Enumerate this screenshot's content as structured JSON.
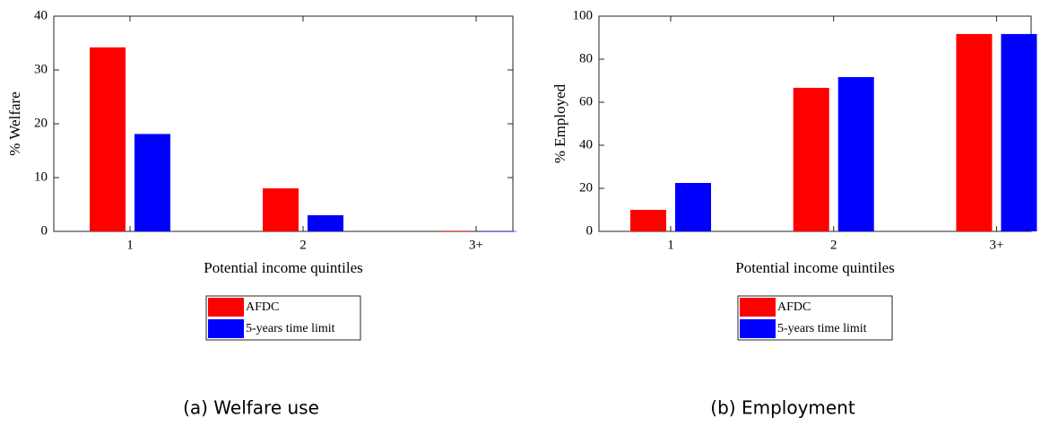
{
  "chart_data": [
    {
      "type": "bar",
      "caption": "(a) Welfare use",
      "xlabel": "Potential income quintiles",
      "ylabel": "% Welfare",
      "categories": [
        "1",
        "2",
        "3+"
      ],
      "series": [
        {
          "name": "AFDC",
          "color": "#ff0000",
          "values": [
            34.2,
            8,
            0.1
          ]
        },
        {
          "name": "5-years time limit",
          "color": "#0000ff",
          "values": [
            18.1,
            3,
            0.05
          ]
        }
      ],
      "ylim": [
        0,
        40
      ],
      "yticks": [
        0,
        10,
        20,
        30,
        40
      ],
      "legend": "bottom"
    },
    {
      "type": "bar",
      "caption": "(b) Employment",
      "xlabel": "Potential income quintiles",
      "ylabel": "% Employed",
      "categories": [
        "1",
        "2",
        "3+"
      ],
      "series": [
        {
          "name": "AFDC",
          "color": "#ff0000",
          "values": [
            10,
            66.7,
            91.7
          ]
        },
        {
          "name": "5-years time limit",
          "color": "#0000ff",
          "values": [
            22.5,
            71.7,
            91.7
          ]
        }
      ],
      "ylim": [
        0,
        100
      ],
      "yticks": [
        0,
        20,
        40,
        60,
        80,
        100
      ],
      "legend": "bottom"
    }
  ]
}
